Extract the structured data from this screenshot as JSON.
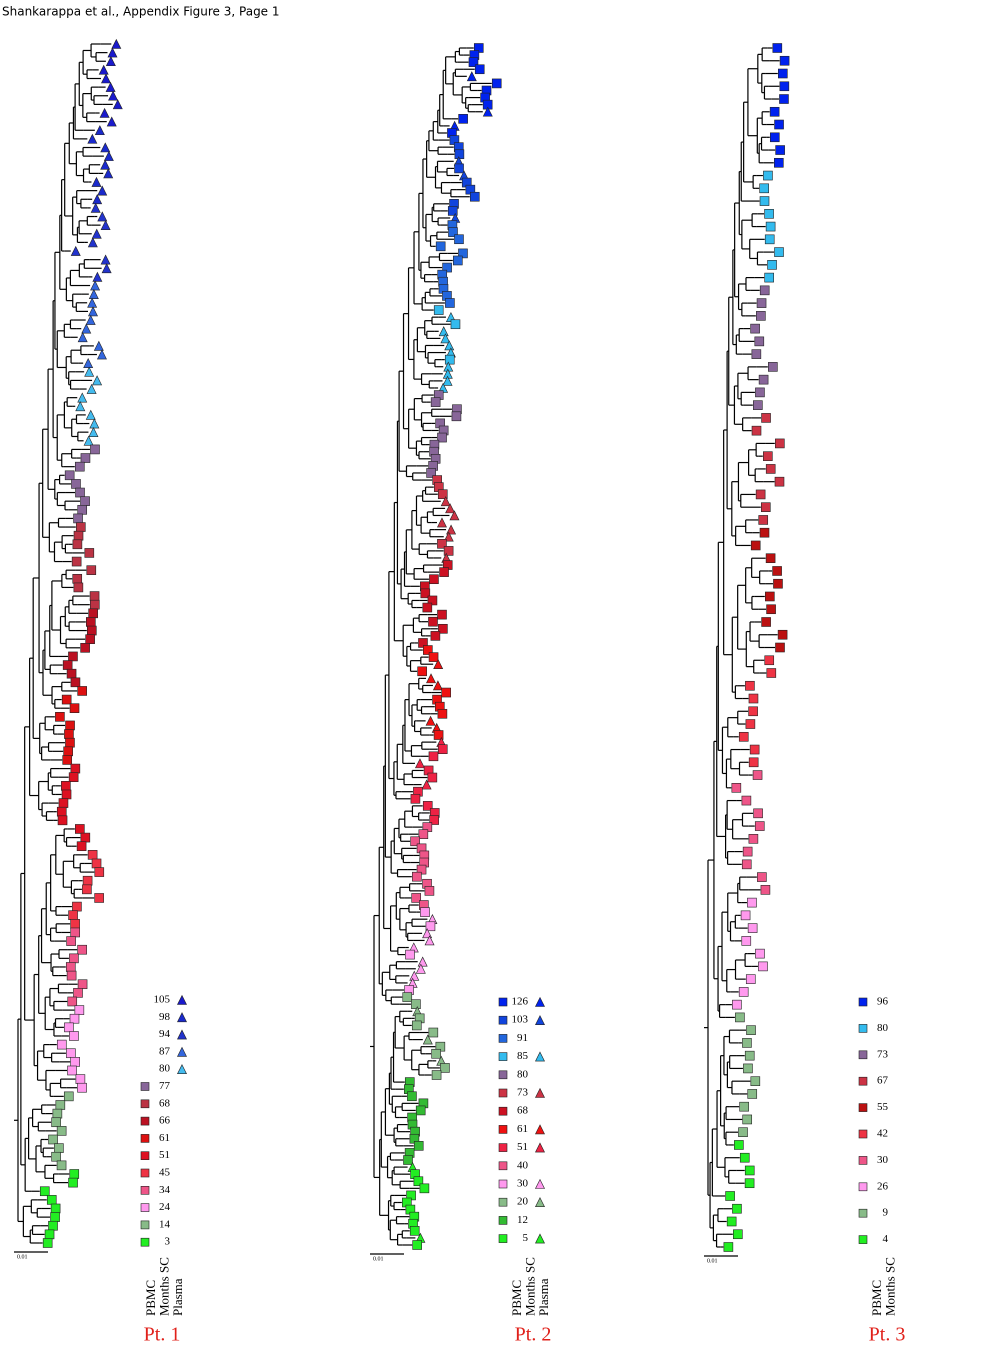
{
  "header": "Shankarappa et al., Appendix Figure 3, Page 1",
  "panels": [
    {
      "title": "Pt. 1",
      "scale": "0.01",
      "columns": [
        "PBMC",
        "Months SC",
        "Plasma"
      ],
      "legend": [
        {
          "label": "105",
          "plasma": "#1a1acc"
        },
        {
          "label": "98",
          "plasma": "#1a2acc"
        },
        {
          "label": "94",
          "plasma": "#2233cc"
        },
        {
          "label": "87",
          "plasma": "#3366dd"
        },
        {
          "label": "80",
          "plasma": "#44bbee"
        },
        {
          "label": "77",
          "pbmc": "#886699"
        },
        {
          "label": "68",
          "pbmc": "#bb3344"
        },
        {
          "label": "66",
          "pbmc": "#bb1122"
        },
        {
          "label": "61",
          "pbmc": "#dd1111"
        },
        {
          "label": "51",
          "pbmc": "#dd1122"
        },
        {
          "label": "45",
          "pbmc": "#ee3344"
        },
        {
          "label": "34",
          "pbmc": "#ee5588"
        },
        {
          "label": "24",
          "pbmc": "#ff99ee"
        },
        {
          "label": "14",
          "pbmc": "#88bb88"
        },
        {
          "label": "3",
          "pbmc": "#22ee22"
        }
      ]
    },
    {
      "title": "Pt. 2",
      "scale": "0.01",
      "columns": [
        "PBMC",
        "Months SC",
        "Plasma"
      ],
      "legend": [
        {
          "label": "126",
          "pbmc": "#0022ee",
          "plasma": "#0022ee"
        },
        {
          "label": "103",
          "pbmc": "#1144dd",
          "plasma": "#1144dd"
        },
        {
          "label": "91",
          "pbmc": "#2266dd"
        },
        {
          "label": "85",
          "pbmc": "#33bbee",
          "plasma": "#33bbee"
        },
        {
          "label": "80",
          "pbmc": "#886699"
        },
        {
          "label": "73",
          "pbmc": "#cc3344",
          "plasma": "#cc3344"
        },
        {
          "label": "68",
          "pbmc": "#cc1122"
        },
        {
          "label": "61",
          "pbmc": "#ee1111",
          "plasma": "#ee1111"
        },
        {
          "label": "51",
          "pbmc": "#ee2244",
          "plasma": "#ee2244"
        },
        {
          "label": "40",
          "pbmc": "#ee5588"
        },
        {
          "label": "30",
          "pbmc": "#ff99ee",
          "plasma": "#ff99ee"
        },
        {
          "label": "20",
          "pbmc": "#88bb88",
          "plasma": "#88bb88"
        },
        {
          "label": "12",
          "pbmc": "#33bb33"
        },
        {
          "label": "5",
          "pbmc": "#22ee22",
          "plasma": "#22ee22"
        }
      ]
    },
    {
      "title": "Pt. 3",
      "scale": "0.01",
      "columns": [
        "PBMC",
        "Months SC"
      ],
      "legend": [
        {
          "label": "96",
          "pbmc": "#0022ee"
        },
        {
          "label": "80",
          "pbmc": "#33bbee"
        },
        {
          "label": "73",
          "pbmc": "#886699"
        },
        {
          "label": "67",
          "pbmc": "#cc3344"
        },
        {
          "label": "55",
          "pbmc": "#bb1111"
        },
        {
          "label": "42",
          "pbmc": "#ee3344"
        },
        {
          "label": "30",
          "pbmc": "#ee5588"
        },
        {
          "label": "26",
          "pbmc": "#ff99ee"
        },
        {
          "label": "9",
          "pbmc": "#88bb88"
        },
        {
          "label": "4",
          "pbmc": "#22ee22"
        }
      ]
    }
  ]
}
